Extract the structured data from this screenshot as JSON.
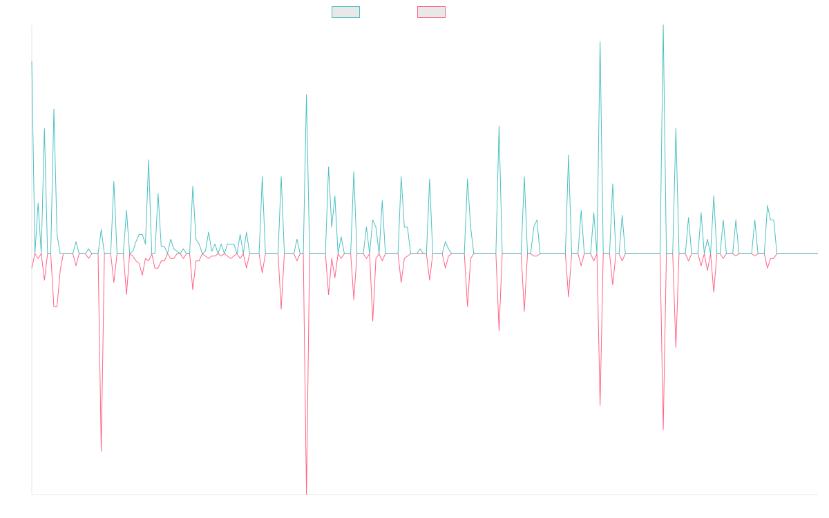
{
  "chart_data": {
    "type": "line",
    "title": "",
    "xlabel": "",
    "ylabel": "",
    "grid": false,
    "legend_placement": "top-center",
    "ylim": [
      -1.0,
      0.95
    ],
    "n_points": 250,
    "series": [
      {
        "name": "",
        "color": "#4bc0c0",
        "legend_fill": "#e8e8e8",
        "spikes": [
          [
            0,
            0.8
          ],
          [
            2,
            0.21
          ],
          [
            4,
            0.52
          ],
          [
            7,
            0.6
          ],
          [
            8,
            0.08
          ],
          [
            14,
            0.05
          ],
          [
            18,
            0.02
          ],
          [
            22,
            0.1
          ],
          [
            26,
            0.3
          ],
          [
            30,
            0.18
          ],
          [
            32,
            0.01
          ],
          [
            33,
            0.05
          ],
          [
            34,
            0.08
          ],
          [
            35,
            0.08
          ],
          [
            36,
            0.04
          ],
          [
            37,
            0.39
          ],
          [
            40,
            0.25
          ],
          [
            41,
            0.03
          ],
          [
            42,
            0.03
          ],
          [
            44,
            0.06
          ],
          [
            45,
            0.02
          ],
          [
            46,
            0.01
          ],
          [
            48,
            0.02
          ],
          [
            51,
            0.28
          ],
          [
            52,
            0.06
          ],
          [
            53,
            0.04
          ],
          [
            55,
            0.01
          ],
          [
            56,
            0.09
          ],
          [
            57,
            0.01
          ],
          [
            58,
            0.04
          ],
          [
            60,
            0.04
          ],
          [
            62,
            0.04
          ],
          [
            63,
            0.04
          ],
          [
            64,
            0.04
          ],
          [
            66,
            0.08
          ],
          [
            68,
            0.09
          ],
          [
            73,
            0.32
          ],
          [
            79,
            0.32
          ],
          [
            84,
            0.06
          ],
          [
            87,
            0.66
          ],
          [
            94,
            0.36
          ],
          [
            95,
            0.11
          ],
          [
            96,
            0.24
          ],
          [
            98,
            0.07
          ],
          [
            102,
            0.34
          ],
          [
            106,
            0.11
          ],
          [
            108,
            0.14
          ],
          [
            109,
            0.11
          ],
          [
            111,
            0.22
          ],
          [
            117,
            0.32
          ],
          [
            118,
            0.11
          ],
          [
            119,
            0.11
          ],
          [
            123,
            0.02
          ],
          [
            126,
            0.31
          ],
          [
            131,
            0.05
          ],
          [
            132,
            0.02
          ],
          [
            138,
            0.31
          ],
          [
            139,
            0.11
          ],
          [
            148,
            0.53
          ],
          [
            156,
            0.32
          ],
          [
            159,
            0.11
          ],
          [
            160,
            0.14
          ],
          [
            170,
            0.41
          ],
          [
            174,
            0.18
          ],
          [
            178,
            0.17
          ],
          [
            180,
            0.88
          ],
          [
            184,
            0.29
          ],
          [
            187,
            0.16
          ],
          [
            200,
            0.95
          ],
          [
            204,
            0.52
          ],
          [
            208,
            0.15
          ],
          [
            212,
            0.17
          ],
          [
            214,
            0.06
          ],
          [
            216,
            0.24
          ],
          [
            219,
            0.14
          ],
          [
            223,
            0.14
          ],
          [
            229,
            0.14
          ],
          [
            233,
            0.2
          ],
          [
            234,
            0.14
          ],
          [
            235,
            0.14
          ]
        ]
      },
      {
        "name": "",
        "color": "#ff6384",
        "legend_fill": "#e8e8e8",
        "spikes": [
          [
            0,
            -0.06
          ],
          [
            2,
            -0.02
          ],
          [
            4,
            -0.11
          ],
          [
            7,
            -0.22
          ],
          [
            8,
            -0.22
          ],
          [
            9,
            -0.07
          ],
          [
            14,
            -0.05
          ],
          [
            18,
            -0.02
          ],
          [
            22,
            -0.82
          ],
          [
            26,
            -0.12
          ],
          [
            30,
            -0.17
          ],
          [
            32,
            -0.01
          ],
          [
            33,
            -0.03
          ],
          [
            34,
            -0.04
          ],
          [
            35,
            -0.09
          ],
          [
            36,
            -0.02
          ],
          [
            37,
            -0.03
          ],
          [
            39,
            -0.06
          ],
          [
            40,
            -0.06
          ],
          [
            41,
            -0.03
          ],
          [
            42,
            -0.03
          ],
          [
            44,
            -0.02
          ],
          [
            45,
            -0.02
          ],
          [
            48,
            -0.02
          ],
          [
            51,
            -0.15
          ],
          [
            52,
            -0.03
          ],
          [
            53,
            -0.03
          ],
          [
            55,
            -0.01
          ],
          [
            56,
            -0.02
          ],
          [
            57,
            -0.01
          ],
          [
            58,
            -0.01
          ],
          [
            60,
            -0.01
          ],
          [
            62,
            -0.01
          ],
          [
            63,
            -0.02
          ],
          [
            64,
            -0.01
          ],
          [
            66,
            -0.02
          ],
          [
            68,
            -0.06
          ],
          [
            73,
            -0.08
          ],
          [
            79,
            -0.23
          ],
          [
            84,
            -0.03
          ],
          [
            87,
            -1.0
          ],
          [
            94,
            -0.17
          ],
          [
            95,
            -0.02
          ],
          [
            96,
            -0.1
          ],
          [
            98,
            -0.02
          ],
          [
            102,
            -0.19
          ],
          [
            106,
            -0.02
          ],
          [
            108,
            -0.28
          ],
          [
            109,
            -0.02
          ],
          [
            111,
            -0.03
          ],
          [
            117,
            -0.12
          ],
          [
            118,
            -0.02
          ],
          [
            119,
            -0.01
          ],
          [
            126,
            -0.11
          ],
          [
            131,
            -0.06
          ],
          [
            132,
            -0.01
          ],
          [
            138,
            -0.22
          ],
          [
            139,
            -0.02
          ],
          [
            148,
            -0.32
          ],
          [
            156,
            -0.24
          ],
          [
            159,
            -0.01
          ],
          [
            160,
            -0.01
          ],
          [
            170,
            -0.18
          ],
          [
            174,
            -0.05
          ],
          [
            178,
            -0.03
          ],
          [
            180,
            -0.63
          ],
          [
            184,
            -0.13
          ],
          [
            187,
            -0.03
          ],
          [
            200,
            -0.73
          ],
          [
            204,
            -0.39
          ],
          [
            208,
            -0.03
          ],
          [
            212,
            -0.05
          ],
          [
            214,
            -0.07
          ],
          [
            216,
            -0.16
          ],
          [
            219,
            -0.02
          ],
          [
            223,
            -0.01
          ],
          [
            229,
            -0.01
          ],
          [
            233,
            -0.06
          ],
          [
            234,
            -0.02
          ],
          [
            235,
            -0.02
          ]
        ]
      }
    ]
  }
}
